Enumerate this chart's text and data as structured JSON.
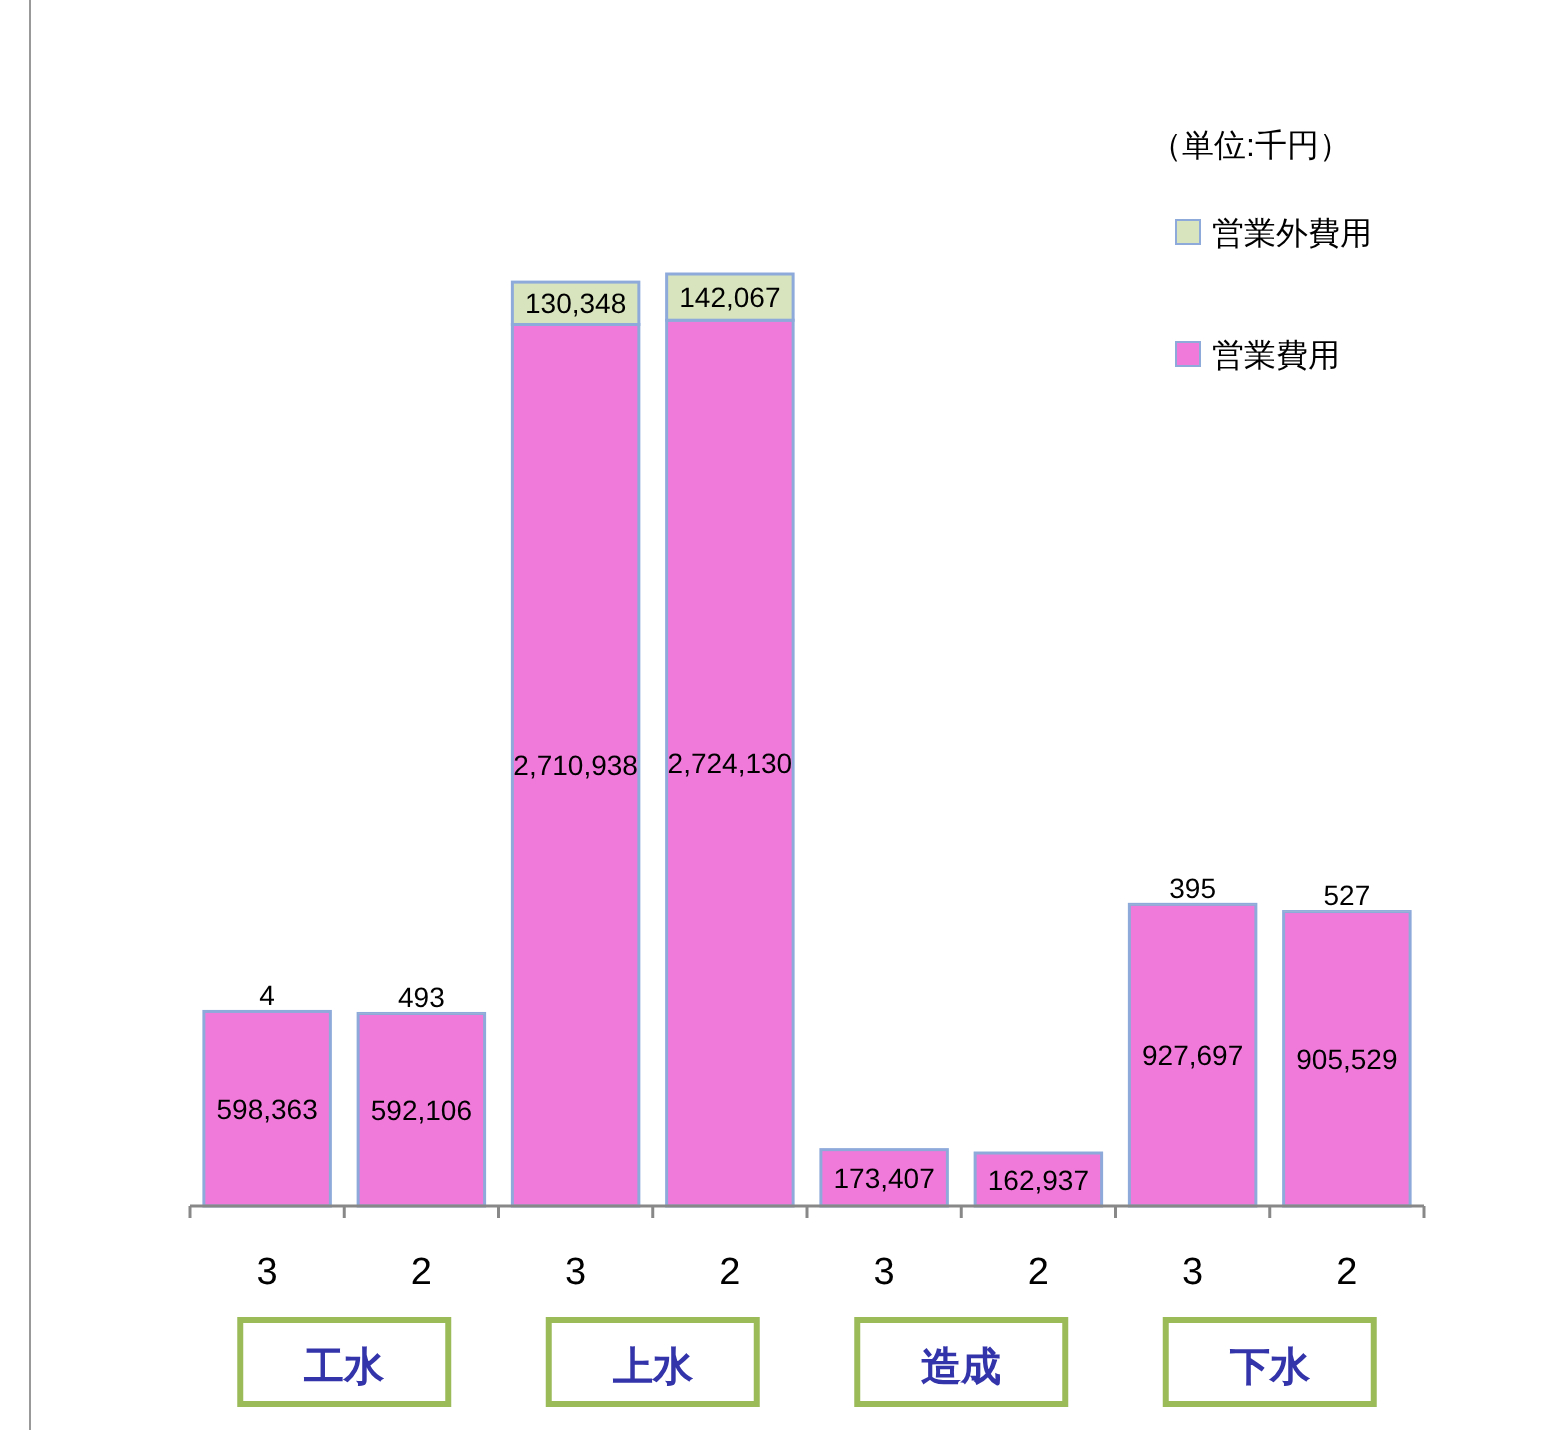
{
  "chart_data": {
    "type": "bar",
    "stacked": true,
    "legend": "top right",
    "categories": [
      "3",
      "2",
      "3",
      "2",
      "3",
      "2",
      "3",
      "2"
    ],
    "series": [
      {
        "name": "営業費用",
        "color": "#f07ad9",
        "values": [
          598363,
          592106,
          2710938,
          2724130,
          173407,
          162937,
          927697,
          905529
        ],
        "value_labels": [
          "598,363",
          "592,106",
          "2,710,938",
          "2,724,130",
          "173,407",
          "162,937",
          "927,697",
          "905,529"
        ]
      },
      {
        "name": "営業外費用",
        "color": "#d7e4bd",
        "values": [
          4,
          493,
          130348,
          142067,
          null,
          null,
          395,
          527
        ],
        "value_labels": [
          "4",
          "493",
          "130,348",
          "142,067",
          null,
          null,
          "395",
          "527"
        ]
      }
    ],
    "annotations": [
      "（単位:千円）",
      "工水",
      "上水",
      "造成",
      "下水"
    ]
  }
}
